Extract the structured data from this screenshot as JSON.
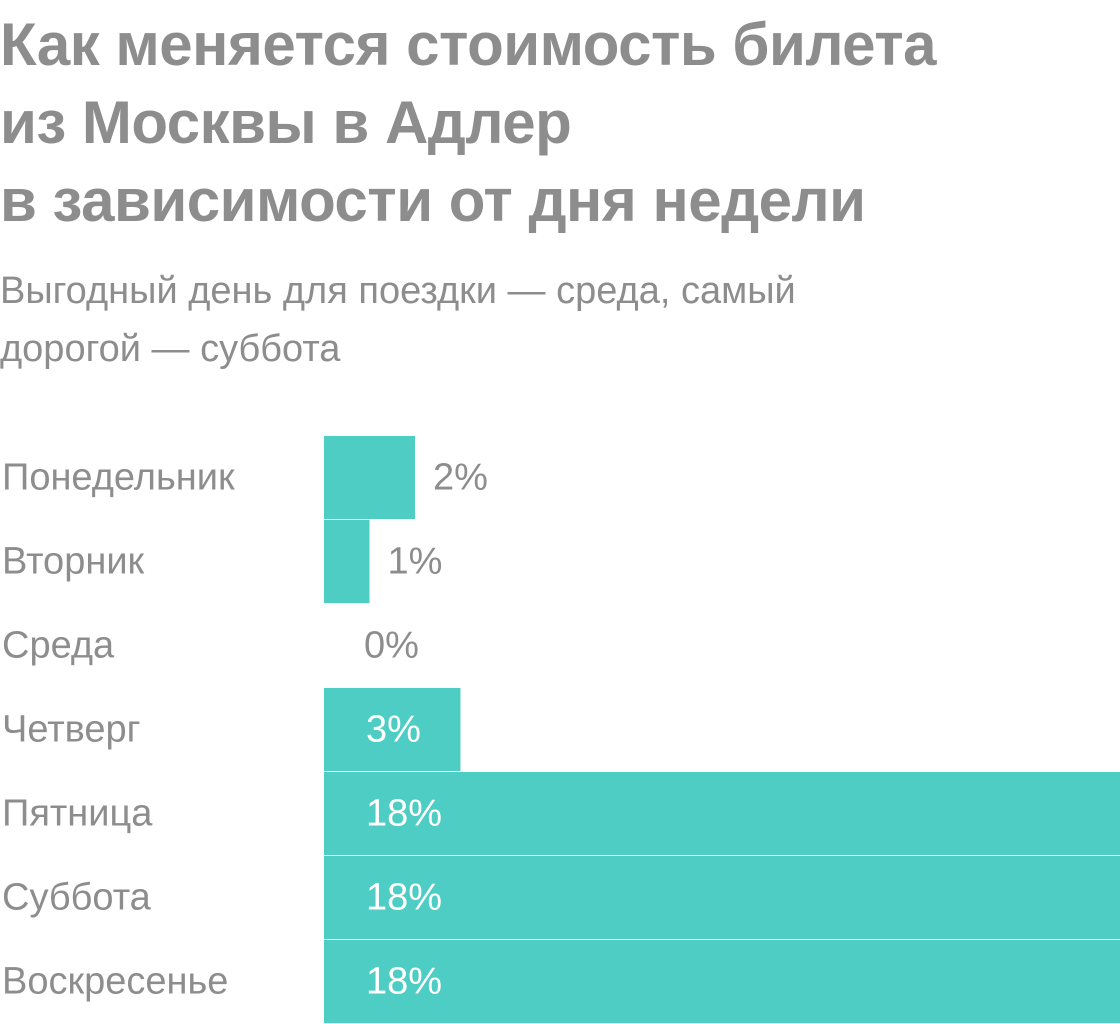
{
  "title_lines": [
    "Как меняется стоимость билета",
    "из Москвы в Адлер",
    "в зависимости от дня недели"
  ],
  "subtitle_lines": [
    "Выгодный день для поездки — среда, самый",
    "дорогой — суббота"
  ],
  "colors": {
    "bar": "#4ecdc4",
    "text": "#8d8d8d",
    "label_inside": "#ffffff"
  },
  "chart_data": {
    "type": "bar",
    "orientation": "horizontal",
    "categories": [
      "Понедельник",
      "Вторник",
      "Среда",
      "Четверг",
      "Пятница",
      "Суббота",
      "Воскресенье"
    ],
    "values": [
      2,
      1,
      0,
      3,
      18,
      18,
      18
    ],
    "value_labels": [
      "2%",
      "1%",
      "0%",
      "3%",
      "18%",
      "18%",
      "18%"
    ],
    "xlim": [
      0,
      17.5
    ],
    "grid": false,
    "legend": "none"
  }
}
